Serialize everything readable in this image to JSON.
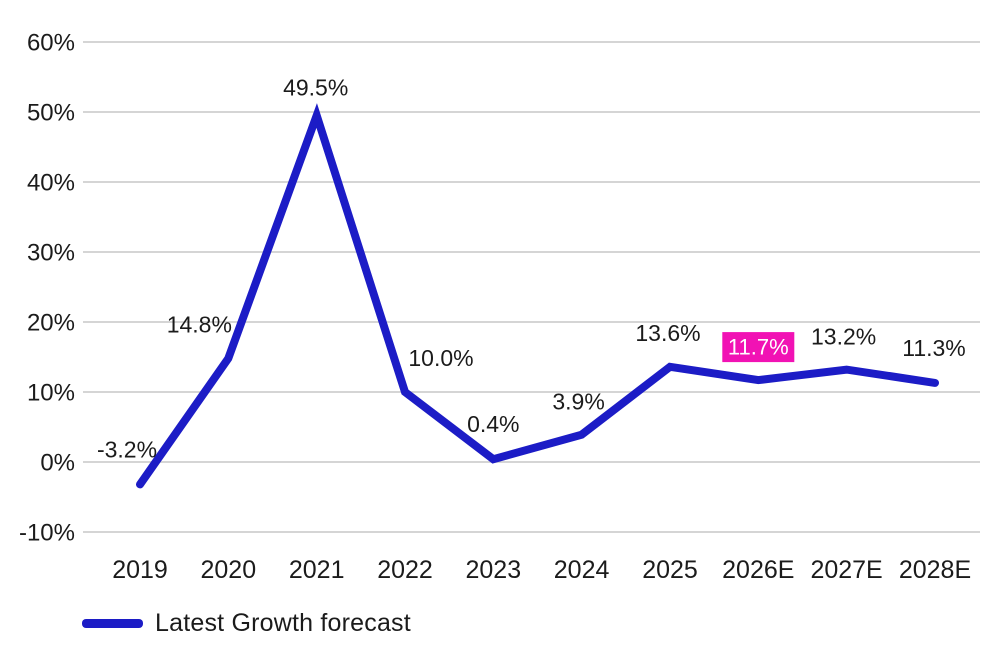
{
  "chart_data": {
    "type": "line",
    "title": "",
    "xlabel": "",
    "ylabel": "",
    "categories": [
      "2019",
      "2020",
      "2021",
      "2022",
      "2023",
      "2024",
      "2025",
      "2026E",
      "2027E",
      "2028E"
    ],
    "series": [
      {
        "name": "Latest Growth forecast",
        "values": [
          -3.2,
          14.8,
          49.5,
          10.0,
          0.4,
          3.9,
          13.6,
          11.7,
          13.2,
          11.3
        ],
        "labels": [
          "-3.2%",
          "14.8%",
          "49.5%",
          "10.0%",
          "0.4%",
          "3.9%",
          "13.6%",
          "11.7%",
          "13.2%",
          "11.3%"
        ],
        "color": "#1c1cc6"
      }
    ],
    "highlighted_point": {
      "category": "2026E",
      "index": 7,
      "label": "11.7%",
      "box_color": "#f112b4",
      "text_color": "#ffffff"
    },
    "y_axis": {
      "ticks": [
        60,
        50,
        40,
        30,
        20,
        10,
        0,
        -10
      ],
      "tick_labels": [
        "60%",
        "50%",
        "40%",
        "30%",
        "20%",
        "10%",
        "0%",
        "-10%"
      ],
      "ylim": [
        -10,
        60
      ],
      "unit": "%"
    },
    "grid": {
      "horizontal": true,
      "vertical": false,
      "color": "#c7c7c7"
    },
    "legend": {
      "position": "bottom-left",
      "entries": [
        "Latest Growth forecast"
      ]
    },
    "text_color": "#1b1b1b",
    "background": "#ffffff"
  },
  "layout_hints": {
    "label_dx": [
      -13,
      -29,
      -1,
      36,
      0,
      -3,
      -2,
      0,
      -3,
      -1
    ],
    "label_dy": [
      -35,
      -34,
      -28,
      -34,
      -35,
      -33,
      -34,
      -33,
      -33,
      -35
    ]
  }
}
